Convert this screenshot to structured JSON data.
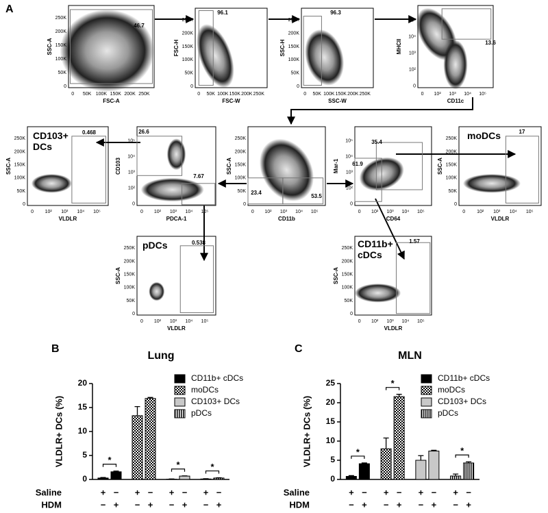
{
  "panel_a": {
    "label": "A",
    "plots": [
      {
        "x_label": "FSC-A",
        "y_label": "SSC-A",
        "x_ticks": [
          "0",
          "50K",
          "100K",
          "150K",
          "200K",
          "250K"
        ],
        "y_ticks": [
          "0",
          "50K",
          "100K",
          "150K",
          "200K",
          "250K"
        ],
        "gates": [
          "46.7"
        ]
      },
      {
        "x_label": "FSC-W",
        "y_label": "FSC-H",
        "x_ticks": [
          "0",
          "50K",
          "100K",
          "150K",
          "200K",
          "250K"
        ],
        "y_ticks": [
          "0",
          "50K",
          "100K",
          "150K",
          "200K",
          "250K"
        ],
        "gates": [
          "96.1"
        ]
      },
      {
        "x_label": "SSC-W",
        "y_label": "SSC-H",
        "x_ticks": [
          "0",
          "50K",
          "100K",
          "150K",
          "200K",
          "250K"
        ],
        "y_ticks": [
          "0",
          "50K",
          "100K",
          "150K",
          "200K",
          "250K"
        ],
        "gates": [
          "96.3"
        ]
      },
      {
        "x_label": "CD11c",
        "y_label": "MHCII",
        "x_ticks": [
          "0",
          "10²",
          "10³",
          "10⁴",
          "10⁵"
        ],
        "y_ticks": [
          "0",
          "10²",
          "10³",
          "10⁴",
          "10⁵"
        ],
        "gates": [
          "13.6"
        ]
      },
      {
        "title": "CD103+ DCs",
        "x_label": "VLDLR",
        "y_label": "SSC-A",
        "x_ticks": [
          "0",
          "10²",
          "10³",
          "10⁴",
          "10⁵"
        ],
        "y_ticks": [
          "0",
          "50K",
          "100K",
          "150K",
          "200K",
          "250K"
        ],
        "gates": [
          "0.468"
        ]
      },
      {
        "x_label": "PDCA-1",
        "y_label": "CD103",
        "x_ticks": [
          "0",
          "10²",
          "10³",
          "10⁴",
          "10⁵"
        ],
        "y_ticks": [
          "0",
          "10²",
          "10³",
          "10⁴",
          "10⁵"
        ],
        "gates": [
          "26.6",
          "7.67"
        ]
      },
      {
        "x_label": "CD11b",
        "y_label": "SSC-A",
        "x_ticks": [
          "0",
          "10²",
          "10³",
          "10⁴",
          "10⁵"
        ],
        "y_ticks": [
          "0",
          "50K",
          "100K",
          "150K",
          "200K",
          "250K"
        ],
        "gates": [
          "23.4",
          "53.5"
        ]
      },
      {
        "x_label": "CD64",
        "y_label": "Mar-1",
        "x_ticks": [
          "0",
          "10²",
          "10³",
          "10⁴",
          "10⁵"
        ],
        "y_ticks": [
          "0",
          "10²",
          "10³",
          "10⁴",
          "10⁵"
        ],
        "gates": [
          "61.9",
          "35.4"
        ]
      },
      {
        "title": "moDCs",
        "x_label": "VLDLR",
        "y_label": "SSC-A",
        "x_ticks": [
          "0",
          "10²",
          "10³",
          "10⁴",
          "10⁵"
        ],
        "y_ticks": [
          "0",
          "50K",
          "100K",
          "150K",
          "200K",
          "250K"
        ],
        "gates": [
          "17"
        ]
      },
      {
        "title": "pDCs",
        "x_label": "VLDLR",
        "y_label": "SSC-A",
        "x_ticks": [
          "0",
          "10²",
          "10³",
          "10⁴",
          "10⁵"
        ],
        "y_ticks": [
          "0",
          "50K",
          "100K",
          "150K",
          "200K",
          "250K"
        ],
        "gates": [
          "0.538"
        ]
      },
      {
        "title": "CD11b+ cDCs",
        "x_label": "VLDLR",
        "y_label": "SSC-A",
        "x_ticks": [
          "0",
          "10²",
          "10³",
          "10⁴",
          "10⁵"
        ],
        "y_ticks": [
          "0",
          "50K",
          "100K",
          "150K",
          "200K",
          "250K"
        ],
        "gates": [
          "1.57"
        ]
      }
    ]
  },
  "chart_data": [
    {
      "type": "bar",
      "panel": "B",
      "title": "Lung",
      "y_label": "VLDLR+ DCs (%)",
      "ylim": [
        0,
        20
      ],
      "yticks": [
        0,
        5,
        10,
        15,
        20
      ],
      "x_rows": [
        {
          "label": "Saline",
          "signs": [
            "+",
            "−",
            "+",
            "−",
            "+",
            "−",
            "+",
            "−"
          ]
        },
        {
          "label": "HDM",
          "signs": [
            "−",
            "+",
            "−",
            "+",
            "−",
            "+",
            "−",
            "+"
          ]
        }
      ],
      "series": [
        {
          "name": "CD11b+ cDCs",
          "color": "#000000",
          "pattern": "solid",
          "values": [
            0.3,
            1.6
          ],
          "errors": [
            0.1,
            0.15
          ],
          "significance": "*"
        },
        {
          "name": "moDCs",
          "color": "#000000",
          "pattern": "checker",
          "values": [
            13.3,
            16.9
          ],
          "errors": [
            1.9,
            0.2
          ],
          "significance": null
        },
        {
          "name": "CD103+ DCs",
          "color": "#c8c8c8",
          "pattern": "solid",
          "values": [
            0.05,
            0.7
          ],
          "errors": [
            0.05,
            0.05
          ],
          "significance": "*"
        },
        {
          "name": "pDCs",
          "color": "#000000",
          "pattern": "stripes",
          "values": [
            0.1,
            0.3
          ],
          "errors": [
            0.05,
            0.05
          ],
          "significance": "*"
        }
      ]
    },
    {
      "type": "bar",
      "panel": "C",
      "title": "MLN",
      "y_label": "VLDLR+ DCs (%)",
      "ylim": [
        0,
        25
      ],
      "yticks": [
        0,
        5,
        10,
        15,
        20,
        25
      ],
      "x_rows": [
        {
          "label": "Saline",
          "signs": [
            "+",
            "−",
            "+",
            "−",
            "+",
            "−",
            "+",
            "−"
          ]
        },
        {
          "label": "HDM",
          "signs": [
            "−",
            "+",
            "−",
            "+",
            "−",
            "+",
            "−",
            "+"
          ]
        }
      ],
      "series": [
        {
          "name": "CD11b+ cDCs",
          "color": "#000000",
          "pattern": "solid",
          "values": [
            0.8,
            4.1
          ],
          "errors": [
            0.2,
            0.2
          ],
          "significance": "*"
        },
        {
          "name": "moDCs",
          "color": "#000000",
          "pattern": "checker",
          "values": [
            8.0,
            21.6
          ],
          "errors": [
            2.8,
            0.6
          ],
          "significance": "*"
        },
        {
          "name": "CD103+ DCs",
          "color": "#c8c8c8",
          "pattern": "solid",
          "values": [
            5.0,
            7.4
          ],
          "errors": [
            1.2,
            0.2
          ],
          "significance": null
        },
        {
          "name": "pDCs",
          "color": "#000000",
          "pattern": "stripes",
          "values": [
            0.9,
            4.3
          ],
          "errors": [
            0.5,
            0.3
          ],
          "significance": "*"
        }
      ]
    }
  ]
}
